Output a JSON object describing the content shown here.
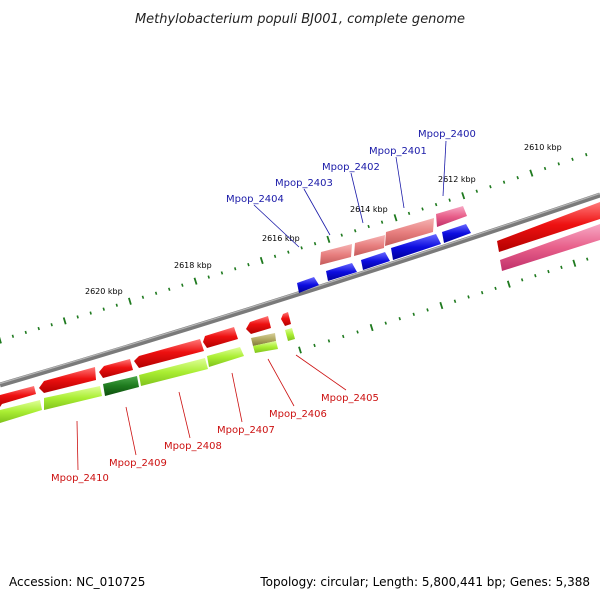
{
  "title": "Methylobacterium populi BJ001, complete genome",
  "footer": {
    "accession": "Accession: NC_010725",
    "summary": "Topology: circular; Length: 5,800,441 bp; Genes: 5,388"
  },
  "colors": {
    "backbone": "#7a7a7a",
    "tick": "#1f7a1f",
    "cds_red": "#ee1111",
    "cds_pink": "#e85f8a",
    "cds_lightred": "#e88080",
    "cds_blue": "#0d0de0",
    "cds_lime": "#aaee33",
    "cds_darkgreen": "#1e7a1e",
    "cds_olive": "#b0a860",
    "label_blue": "#1a1aa8",
    "label_red": "#cc1111"
  },
  "scale_labels": [
    "2610 kbp",
    "2612 kbp",
    "2614 kbp",
    "2616 kbp",
    "2618 kbp",
    "2620 kbp"
  ],
  "gene_labels_top": [
    "Mpop_2400",
    "Mpop_2401",
    "Mpop_2402",
    "Mpop_2403",
    "Mpop_2404"
  ],
  "gene_labels_bottom": [
    "Mpop_2405",
    "Mpop_2406",
    "Mpop_2407",
    "Mpop_2408",
    "Mpop_2409",
    "Mpop_2410"
  ]
}
